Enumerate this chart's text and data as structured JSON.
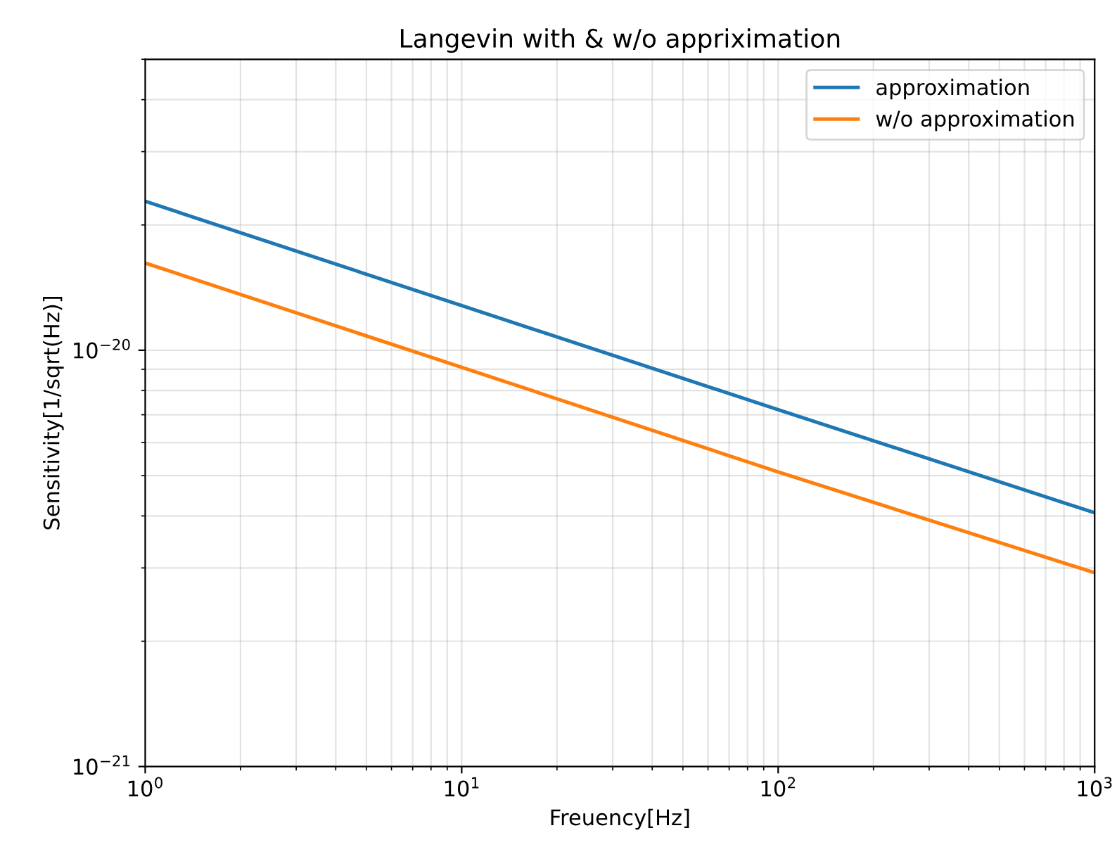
{
  "chart_data": {
    "type": "line",
    "title": "Langevin with & w/o appriximation",
    "xlabel": "Freuency[Hz]",
    "ylabel": "Sensitivity[1/sqrt(Hz)]",
    "x": [
      1,
      10,
      100,
      1000
    ],
    "series": [
      {
        "name": "approximation",
        "color": "#1f77b4",
        "values": [
          2.28e-20,
          1.28e-20,
          7.2e-21,
          4.07e-21
        ]
      },
      {
        "name": "w/o approximation",
        "color": "#ff7f0e",
        "values": [
          1.62e-20,
          9.1e-21,
          5.1e-21,
          2.92e-21
        ]
      }
    ],
    "log": "xy",
    "xlim": [
      1,
      1000
    ],
    "ylim": [
      1e-21,
      5e-20
    ],
    "xticks": [
      {
        "value": 1,
        "label": "10$^{0}$"
      },
      {
        "value": 10,
        "label": "10$^{1}$"
      },
      {
        "value": 100,
        "label": "10$^{2}$"
      },
      {
        "value": 1000,
        "label": "10$^{3}$"
      }
    ],
    "yticks": [
      {
        "value": 1e-21,
        "label": "10$^{−21}$"
      },
      {
        "value": 1e-20,
        "label": "10$^{−20}$"
      }
    ],
    "grid": true,
    "legend": "top right"
  }
}
